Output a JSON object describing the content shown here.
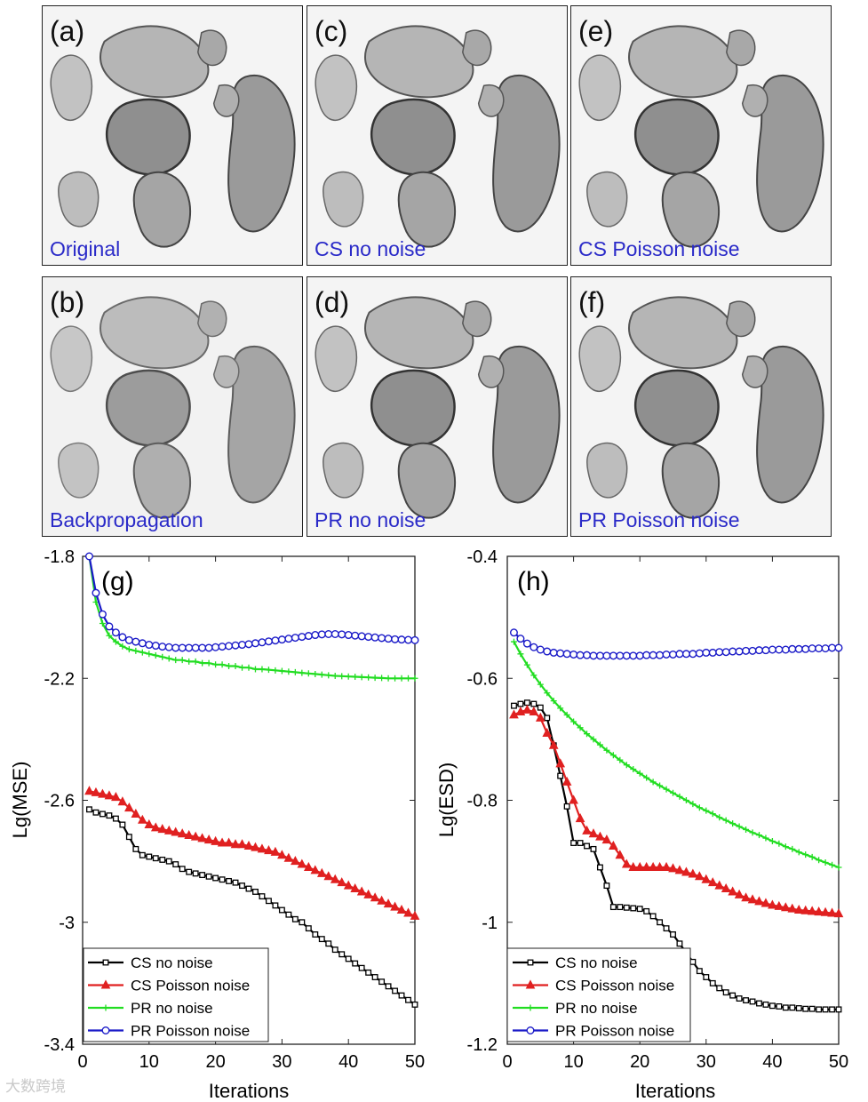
{
  "panels": [
    {
      "id": "a",
      "label": "(a)",
      "caption": "Original"
    },
    {
      "id": "b",
      "label": "(b)",
      "caption": "Backpropagation"
    },
    {
      "id": "c",
      "label": "(c)",
      "caption": "CS no noise"
    },
    {
      "id": "d",
      "label": "(d)",
      "caption": "PR no noise"
    },
    {
      "id": "e",
      "label": "(e)",
      "caption": "CS Poisson noise"
    },
    {
      "id": "f",
      "label": "(f)",
      "caption": "PR Poisson noise"
    }
  ],
  "watermark": "大数跨境",
  "colors": {
    "cs_no_noise": "#000000",
    "cs_poisson": "#e02020",
    "pr_no_noise": "#22dd22",
    "pr_poisson": "#1a1ac8",
    "caption": "#2a2ac8"
  },
  "chart_data": [
    {
      "type": "line",
      "panel_label": "(g)",
      "xlabel": "Iterations",
      "ylabel": "Lg(MSE)",
      "xlim": [
        0,
        50
      ],
      "ylim": [
        -3.4,
        -1.8
      ],
      "xticks": [
        0,
        10,
        20,
        30,
        40,
        50
      ],
      "yticks": [
        -1.8,
        -2.2,
        -2.6,
        -3,
        -3.4
      ],
      "ytick_labels": [
        "-1.8",
        "-2.2",
        "-2.6",
        "-3",
        "-3.4"
      ],
      "legend_position": "bottom-left",
      "series": [
        {
          "name": "CS no noise",
          "color": "#000000",
          "marker": "square",
          "x": [
            1,
            2,
            3,
            4,
            5,
            6,
            7,
            8,
            9,
            10,
            11,
            12,
            13,
            14,
            15,
            16,
            17,
            18,
            19,
            20,
            21,
            22,
            23,
            24,
            25,
            26,
            27,
            28,
            29,
            30,
            31,
            32,
            33,
            34,
            35,
            36,
            37,
            38,
            39,
            40,
            41,
            42,
            43,
            44,
            45,
            46,
            47,
            48,
            49,
            50
          ],
          "y": [
            -2.63,
            -2.64,
            -2.645,
            -2.65,
            -2.66,
            -2.68,
            -2.72,
            -2.76,
            -2.78,
            -2.785,
            -2.79,
            -2.795,
            -2.8,
            -2.81,
            -2.825,
            -2.835,
            -2.84,
            -2.845,
            -2.85,
            -2.855,
            -2.86,
            -2.865,
            -2.87,
            -2.88,
            -2.89,
            -2.9,
            -2.915,
            -2.93,
            -2.945,
            -2.96,
            -2.975,
            -2.99,
            -3.0,
            -3.02,
            -3.04,
            -3.055,
            -3.07,
            -3.09,
            -3.105,
            -3.12,
            -3.135,
            -3.15,
            -3.165,
            -3.18,
            -3.195,
            -3.21,
            -3.225,
            -3.24,
            -3.255,
            -3.27
          ]
        },
        {
          "name": "CS Poisson noise",
          "color": "#e02020",
          "marker": "triangle",
          "x": [
            1,
            2,
            3,
            4,
            5,
            6,
            7,
            8,
            9,
            10,
            11,
            12,
            13,
            14,
            15,
            16,
            17,
            18,
            19,
            20,
            21,
            22,
            23,
            24,
            25,
            26,
            27,
            28,
            29,
            30,
            31,
            32,
            33,
            34,
            35,
            36,
            37,
            38,
            39,
            40,
            41,
            42,
            43,
            44,
            45,
            46,
            47,
            48,
            49,
            50
          ],
          "y": [
            -2.57,
            -2.575,
            -2.58,
            -2.585,
            -2.59,
            -2.605,
            -2.625,
            -2.645,
            -2.665,
            -2.68,
            -2.69,
            -2.695,
            -2.7,
            -2.705,
            -2.71,
            -2.715,
            -2.72,
            -2.725,
            -2.73,
            -2.735,
            -2.74,
            -2.74,
            -2.745,
            -2.745,
            -2.75,
            -2.755,
            -2.76,
            -2.765,
            -2.77,
            -2.78,
            -2.79,
            -2.8,
            -2.81,
            -2.82,
            -2.83,
            -2.84,
            -2.85,
            -2.86,
            -2.87,
            -2.88,
            -2.89,
            -2.9,
            -2.91,
            -2.92,
            -2.93,
            -2.94,
            -2.95,
            -2.96,
            -2.97,
            -2.98
          ]
        },
        {
          "name": "PR no noise",
          "color": "#22dd22",
          "marker": "plus",
          "x": [
            1,
            2,
            3,
            4,
            5,
            6,
            7,
            8,
            9,
            10,
            11,
            12,
            13,
            14,
            15,
            16,
            17,
            18,
            19,
            20,
            21,
            22,
            23,
            24,
            25,
            26,
            27,
            28,
            29,
            30,
            31,
            32,
            33,
            34,
            35,
            36,
            37,
            38,
            39,
            40,
            41,
            42,
            43,
            44,
            45,
            46,
            47,
            48,
            49,
            50
          ],
          "y": [
            -1.8,
            -1.95,
            -2.02,
            -2.06,
            -2.08,
            -2.095,
            -2.105,
            -2.11,
            -2.115,
            -2.12,
            -2.125,
            -2.13,
            -2.135,
            -2.14,
            -2.14,
            -2.145,
            -2.145,
            -2.15,
            -2.15,
            -2.155,
            -2.155,
            -2.16,
            -2.16,
            -2.165,
            -2.165,
            -2.17,
            -2.17,
            -2.172,
            -2.174,
            -2.176,
            -2.178,
            -2.18,
            -2.182,
            -2.184,
            -2.186,
            -2.188,
            -2.19,
            -2.192,
            -2.193,
            -2.194,
            -2.195,
            -2.196,
            -2.197,
            -2.198,
            -2.199,
            -2.2,
            -2.2,
            -2.2,
            -2.2,
            -2.2
          ]
        },
        {
          "name": "PR Poisson noise",
          "color": "#1a1ac8",
          "marker": "circle",
          "x": [
            1,
            2,
            3,
            4,
            5,
            6,
            7,
            8,
            9,
            10,
            11,
            12,
            13,
            14,
            15,
            16,
            17,
            18,
            19,
            20,
            21,
            22,
            23,
            24,
            25,
            26,
            27,
            28,
            29,
            30,
            31,
            32,
            33,
            34,
            35,
            36,
            37,
            38,
            39,
            40,
            41,
            42,
            43,
            44,
            45,
            46,
            47,
            48,
            49,
            50
          ],
          "y": [
            -1.77,
            -1.92,
            -1.99,
            -2.03,
            -2.05,
            -2.065,
            -2.075,
            -2.08,
            -2.085,
            -2.09,
            -2.093,
            -2.096,
            -2.098,
            -2.1,
            -2.1,
            -2.1,
            -2.1,
            -2.1,
            -2.1,
            -2.098,
            -2.096,
            -2.094,
            -2.092,
            -2.09,
            -2.088,
            -2.085,
            -2.082,
            -2.079,
            -2.076,
            -2.073,
            -2.07,
            -2.067,
            -2.064,
            -2.061,
            -2.058,
            -2.056,
            -2.055,
            -2.055,
            -2.056,
            -2.058,
            -2.06,
            -2.062,
            -2.064,
            -2.066,
            -2.068,
            -2.07,
            -2.072,
            -2.073,
            -2.074,
            -2.075
          ]
        }
      ]
    },
    {
      "type": "line",
      "panel_label": "(h)",
      "xlabel": "Iterations",
      "ylabel": "Lg(ESD)",
      "xlim": [
        0,
        50
      ],
      "ylim": [
        -1.2,
        -0.4
      ],
      "xticks": [
        0,
        10,
        20,
        30,
        40,
        50
      ],
      "yticks": [
        -0.4,
        -0.6,
        -0.8,
        -1,
        -1.2
      ],
      "ytick_labels": [
        "-0.4",
        "-0.6",
        "-0.8",
        "-1",
        "-1.2"
      ],
      "legend_position": "bottom-left",
      "series": [
        {
          "name": "CS no noise",
          "color": "#000000",
          "marker": "square",
          "x": [
            1,
            2,
            3,
            4,
            5,
            6,
            7,
            8,
            9,
            10,
            11,
            12,
            13,
            14,
            15,
            16,
            17,
            18,
            19,
            20,
            21,
            22,
            23,
            24,
            25,
            26,
            27,
            28,
            29,
            30,
            31,
            32,
            33,
            34,
            35,
            36,
            37,
            38,
            39,
            40,
            41,
            42,
            43,
            44,
            45,
            46,
            47,
            48,
            49,
            50
          ],
          "y": [
            -0.645,
            -0.642,
            -0.64,
            -0.642,
            -0.648,
            -0.665,
            -0.71,
            -0.76,
            -0.81,
            -0.87,
            -0.87,
            -0.875,
            -0.88,
            -0.91,
            -0.94,
            -0.975,
            -0.975,
            -0.976,
            -0.977,
            -0.978,
            -0.982,
            -0.99,
            -1.0,
            -1.01,
            -1.02,
            -1.035,
            -1.05,
            -1.065,
            -1.08,
            -1.09,
            -1.1,
            -1.108,
            -1.115,
            -1.12,
            -1.125,
            -1.128,
            -1.13,
            -1.133,
            -1.135,
            -1.137,
            -1.138,
            -1.14,
            -1.14,
            -1.141,
            -1.142,
            -1.142,
            -1.143,
            -1.143,
            -1.143,
            -1.143
          ]
        },
        {
          "name": "CS Poisson noise",
          "color": "#e02020",
          "marker": "triangle",
          "x": [
            1,
            2,
            3,
            4,
            5,
            6,
            7,
            8,
            9,
            10,
            11,
            12,
            13,
            14,
            15,
            16,
            17,
            18,
            19,
            20,
            21,
            22,
            23,
            24,
            25,
            26,
            27,
            28,
            29,
            30,
            31,
            32,
            33,
            34,
            35,
            36,
            37,
            38,
            39,
            40,
            41,
            42,
            43,
            44,
            45,
            46,
            47,
            48,
            49,
            50
          ],
          "y": [
            -0.66,
            -0.655,
            -0.652,
            -0.655,
            -0.665,
            -0.69,
            -0.71,
            -0.74,
            -0.77,
            -0.8,
            -0.83,
            -0.85,
            -0.855,
            -0.86,
            -0.865,
            -0.875,
            -0.89,
            -0.905,
            -0.91,
            -0.91,
            -0.91,
            -0.91,
            -0.91,
            -0.91,
            -0.912,
            -0.915,
            -0.918,
            -0.921,
            -0.925,
            -0.93,
            -0.935,
            -0.94,
            -0.945,
            -0.95,
            -0.955,
            -0.96,
            -0.963,
            -0.966,
            -0.969,
            -0.972,
            -0.974,
            -0.976,
            -0.978,
            -0.98,
            -0.981,
            -0.982,
            -0.983,
            -0.984,
            -0.985,
            -0.986
          ]
        },
        {
          "name": "PR no noise",
          "color": "#22dd22",
          "marker": "plus",
          "x": [
            1,
            2,
            3,
            4,
            5,
            6,
            7,
            8,
            9,
            10,
            11,
            12,
            13,
            14,
            15,
            16,
            17,
            18,
            19,
            20,
            21,
            22,
            23,
            24,
            25,
            26,
            27,
            28,
            29,
            30,
            31,
            32,
            33,
            34,
            35,
            36,
            37,
            38,
            39,
            40,
            41,
            42,
            43,
            44,
            45,
            46,
            47,
            48,
            49,
            50
          ],
          "y": [
            -0.54,
            -0.56,
            -0.578,
            -0.595,
            -0.61,
            -0.624,
            -0.637,
            -0.649,
            -0.66,
            -0.671,
            -0.681,
            -0.691,
            -0.7,
            -0.709,
            -0.718,
            -0.726,
            -0.734,
            -0.742,
            -0.749,
            -0.756,
            -0.763,
            -0.77,
            -0.776,
            -0.782,
            -0.788,
            -0.794,
            -0.8,
            -0.806,
            -0.812,
            -0.817,
            -0.822,
            -0.828,
            -0.833,
            -0.838,
            -0.843,
            -0.848,
            -0.853,
            -0.857,
            -0.862,
            -0.867,
            -0.871,
            -0.876,
            -0.88,
            -0.885,
            -0.889,
            -0.893,
            -0.898,
            -0.902,
            -0.906,
            -0.91
          ]
        },
        {
          "name": "PR Poisson noise",
          "color": "#1a1ac8",
          "marker": "circle",
          "x": [
            1,
            2,
            3,
            4,
            5,
            6,
            7,
            8,
            9,
            10,
            11,
            12,
            13,
            14,
            15,
            16,
            17,
            18,
            19,
            20,
            21,
            22,
            23,
            24,
            25,
            26,
            27,
            28,
            29,
            30,
            31,
            32,
            33,
            34,
            35,
            36,
            37,
            38,
            39,
            40,
            41,
            42,
            43,
            44,
            45,
            46,
            47,
            48,
            49,
            50
          ],
          "y": [
            -0.525,
            -0.535,
            -0.543,
            -0.549,
            -0.553,
            -0.556,
            -0.558,
            -0.559,
            -0.56,
            -0.561,
            -0.562,
            -0.562,
            -0.563,
            -0.563,
            -0.563,
            -0.563,
            -0.563,
            -0.563,
            -0.563,
            -0.563,
            -0.562,
            -0.562,
            -0.562,
            -0.561,
            -0.561,
            -0.56,
            -0.56,
            -0.56,
            -0.559,
            -0.558,
            -0.558,
            -0.557,
            -0.557,
            -0.556,
            -0.556,
            -0.555,
            -0.555,
            -0.554,
            -0.554,
            -0.553,
            -0.553,
            -0.553,
            -0.552,
            -0.552,
            -0.552,
            -0.551,
            -0.551,
            -0.551,
            -0.55,
            -0.55
          ]
        }
      ]
    }
  ]
}
